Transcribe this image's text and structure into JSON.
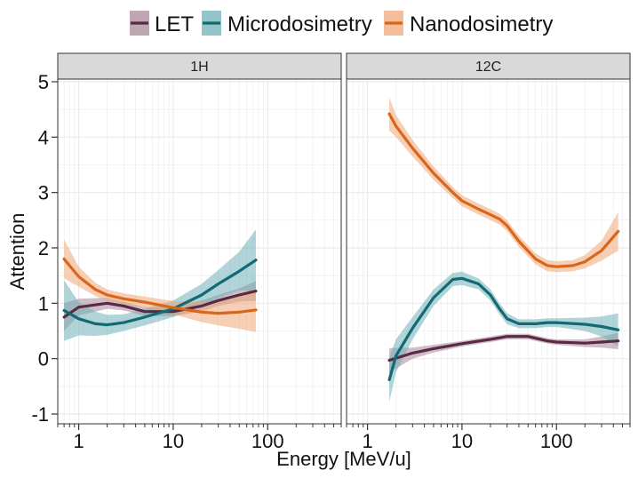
{
  "chart_data": {
    "type": "line",
    "subtype": "smoothed line with confidence ribbons, faceted",
    "xlabel": "Energy [MeV/u]",
    "ylabel": "Attention",
    "x_scale": "log10",
    "ylim": [
      -1,
      5
    ],
    "y_ticks": [
      -1,
      0,
      1,
      2,
      3,
      4,
      5
    ],
    "legend": {
      "position": "top",
      "entries": [
        "LET",
        "Microdosimetry",
        "Nanodosimetry"
      ]
    },
    "colors": {
      "LET": "#5a2a44",
      "Microdosimetry": "#126a72",
      "Nanodosimetry": "#d9661a",
      "LET_fill": "#a8889a",
      "Microdosimetry_fill": "#6fb1b6",
      "Nanodosimetry_fill": "#f0a878",
      "strip_fill": "#d9d9d9",
      "grid": "#ebebeb"
    },
    "panels": [
      {
        "title": "1H",
        "xlim": [
          0.6,
          600
        ],
        "x_ticks": [
          1,
          10,
          100
        ],
        "x_tick_labels": [
          "1",
          "10",
          "100"
        ],
        "series": [
          {
            "name": "LET",
            "x": [
              0.7,
              1,
              2,
              3,
              5,
              10,
              20,
              30,
              50,
              75
            ],
            "y": [
              0.75,
              0.93,
              1.0,
              0.95,
              0.85,
              0.85,
              0.95,
              1.05,
              1.15,
              1.22
            ],
            "ci": [
              0.25,
              0.15,
              0.1,
              0.08,
              0.08,
              0.08,
              0.1,
              0.1,
              0.12,
              0.18
            ]
          },
          {
            "name": "Microdosimetry",
            "x": [
              0.7,
              1,
              1.5,
              2,
              3,
              5,
              10,
              20,
              30,
              50,
              75
            ],
            "y": [
              0.87,
              0.72,
              0.63,
              0.61,
              0.65,
              0.75,
              0.9,
              1.15,
              1.35,
              1.58,
              1.78
            ],
            "ci": [
              0.55,
              0.3,
              0.22,
              0.18,
              0.15,
              0.15,
              0.15,
              0.2,
              0.25,
              0.35,
              0.55
            ]
          },
          {
            "name": "Nanodosimetry",
            "x": [
              0.7,
              1,
              1.5,
              2,
              3,
              5,
              10,
              20,
              30,
              50,
              75
            ],
            "y": [
              1.8,
              1.48,
              1.25,
              1.15,
              1.08,
              1.02,
              0.92,
              0.84,
              0.82,
              0.84,
              0.88
            ],
            "ci": [
              0.35,
              0.18,
              0.12,
              0.1,
              0.1,
              0.1,
              0.12,
              0.18,
              0.22,
              0.3,
              0.4
            ]
          }
        ]
      },
      {
        "title": "12C",
        "xlim": [
          0.6,
          600
        ],
        "x_ticks": [
          1,
          10,
          100
        ],
        "x_tick_labels": [
          "1",
          "10",
          "100"
        ],
        "series": [
          {
            "name": "LET",
            "x": [
              1.7,
              3,
              5,
              10,
              20,
              30,
              50,
              80,
              100,
              200,
              300,
              450
            ],
            "y": [
              -0.03,
              0.1,
              0.18,
              0.27,
              0.35,
              0.4,
              0.4,
              0.32,
              0.3,
              0.28,
              0.3,
              0.32
            ],
            "ci": [
              0.22,
              0.1,
              0.07,
              0.05,
              0.05,
              0.05,
              0.05,
              0.05,
              0.05,
              0.07,
              0.1,
              0.15
            ]
          },
          {
            "name": "Microdosimetry",
            "x": [
              1.7,
              2,
              3,
              5,
              8,
              10,
              15,
              20,
              25,
              30,
              40,
              60,
              80,
              100,
              200,
              300,
              450
            ],
            "y": [
              -0.38,
              0.05,
              0.55,
              1.1,
              1.43,
              1.45,
              1.35,
              1.15,
              0.9,
              0.72,
              0.63,
              0.63,
              0.65,
              0.65,
              0.62,
              0.58,
              0.52
            ],
            "ci": [
              0.4,
              0.3,
              0.2,
              0.15,
              0.12,
              0.12,
              0.1,
              0.1,
              0.1,
              0.1,
              0.08,
              0.08,
              0.08,
              0.08,
              0.12,
              0.18,
              0.3
            ]
          },
          {
            "name": "Nanodosimetry",
            "x": [
              1.7,
              2,
              3,
              5,
              8,
              10,
              15,
              20,
              25,
              30,
              40,
              60,
              80,
              100,
              150,
              200,
              300,
              450
            ],
            "y": [
              4.42,
              4.2,
              3.8,
              3.35,
              3.0,
              2.85,
              2.7,
              2.6,
              2.52,
              2.4,
              2.12,
              1.8,
              1.68,
              1.66,
              1.68,
              1.75,
              1.95,
              2.3
            ],
            "ci": [
              0.3,
              0.2,
              0.15,
              0.12,
              0.1,
              0.1,
              0.1,
              0.1,
              0.1,
              0.1,
              0.1,
              0.1,
              0.1,
              0.1,
              0.1,
              0.12,
              0.18,
              0.35
            ]
          }
        ]
      }
    ]
  }
}
